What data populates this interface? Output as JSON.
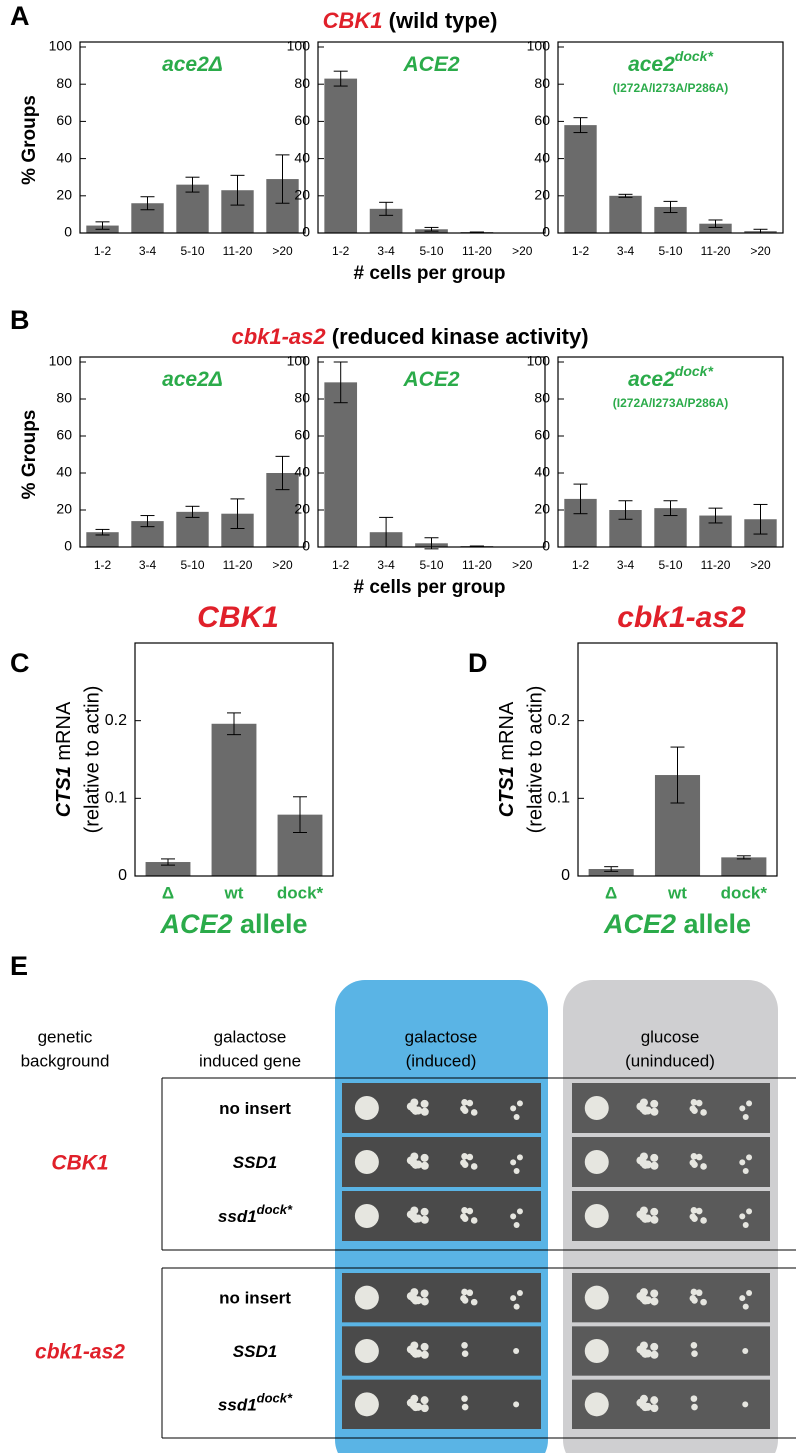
{
  "figure": {
    "labels": [
      "A",
      "B",
      "C",
      "D",
      "E"
    ],
    "a_title": [
      "CBK1",
      "(wild type)"
    ],
    "b_title": [
      "cbk1-as2",
      "(reduced kinase activity)"
    ]
  },
  "chart_data": [
    {
      "type": "bar",
      "title": "ace2Δ",
      "categories": [
        "1-2",
        "3-4",
        "5-10",
        "11-20",
        ">20"
      ],
      "values": [
        4,
        16,
        26,
        23,
        29
      ],
      "errors": [
        2,
        3.5,
        4,
        8,
        13
      ],
      "ylim": [
        0,
        100
      ],
      "yticks": [
        0,
        20,
        40,
        60,
        80,
        100
      ],
      "color": "#6b6b6b",
      "title_color": "#2bab4a",
      "ylabel": "% Groups"
    },
    {
      "type": "bar",
      "title": "ACE2",
      "categories": [
        "1-2",
        "3-4",
        "5-10",
        "11-20",
        ">20"
      ],
      "values": [
        83,
        13,
        2,
        0.5,
        0
      ],
      "errors": [
        4,
        3.5,
        1,
        0,
        0
      ],
      "ylim": [
        0,
        100
      ],
      "yticks": [
        0,
        20,
        40,
        60,
        80,
        100
      ],
      "color": "#6b6b6b",
      "title_color": "#2bab4a",
      "xlabel": "# cells per group"
    },
    {
      "type": "bar",
      "title": "ace2",
      "title_sup": "dock*",
      "subtitle": "(I272A/I273A/P286A)",
      "categories": [
        "1-2",
        "3-4",
        "5-10",
        "11-20",
        ">20"
      ],
      "values": [
        58,
        20,
        14,
        5,
        1
      ],
      "errors": [
        4,
        0.8,
        3,
        2,
        1
      ],
      "ylim": [
        0,
        100
      ],
      "yticks": [
        0,
        20,
        40,
        60,
        80,
        100
      ],
      "color": "#6b6b6b",
      "title_color": "#2bab4a"
    },
    {
      "type": "bar",
      "title": "ace2Δ",
      "categories": [
        "1-2",
        "3-4",
        "5-10",
        "11-20",
        ">20"
      ],
      "values": [
        8,
        14,
        19,
        18,
        40
      ],
      "errors": [
        1.5,
        3,
        3,
        8,
        9
      ],
      "ylim": [
        0,
        100
      ],
      "yticks": [
        0,
        20,
        40,
        60,
        80,
        100
      ],
      "color": "#6b6b6b",
      "title_color": "#2bab4a",
      "ylabel": "% Groups"
    },
    {
      "type": "bar",
      "title": "ACE2",
      "categories": [
        "1-2",
        "3-4",
        "5-10",
        "11-20",
        ">20"
      ],
      "values": [
        89,
        8,
        2,
        0.5,
        0
      ],
      "errors": [
        11,
        8,
        3,
        0,
        0
      ],
      "ylim": [
        0,
        100
      ],
      "yticks": [
        0,
        20,
        40,
        60,
        80,
        100
      ],
      "color": "#6b6b6b",
      "title_color": "#2bab4a",
      "xlabel": "# cells per group"
    },
    {
      "type": "bar",
      "title": "ace2",
      "title_sup": "dock*",
      "subtitle": "(I272A/I273A/P286A)",
      "categories": [
        "1-2",
        "3-4",
        "5-10",
        "11-20",
        ">20"
      ],
      "values": [
        26,
        20,
        21,
        17,
        15
      ],
      "errors": [
        8,
        5,
        4,
        4,
        8
      ],
      "ylim": [
        0,
        100
      ],
      "yticks": [
        0,
        20,
        40,
        60,
        80,
        100
      ],
      "color": "#6b6b6b",
      "title_color": "#2bab4a"
    },
    {
      "type": "bar",
      "title": "CBK1",
      "title_color": "#e0202a",
      "categories": [
        "Δ",
        "wt",
        "dock*"
      ],
      "values": [
        0.018,
        0.196,
        0.079
      ],
      "errors": [
        0.004,
        0.014,
        0.023
      ],
      "ylim": [
        0,
        0.3
      ],
      "yticks": [
        0,
        0.1,
        0.2
      ],
      "color": "#6b6b6b",
      "ylabel_italic": "CTS1",
      "ylabel_rest": " mRNA",
      "ylabel2": "(relative to actin)",
      "xlabel_italic": "ACE2",
      "xlabel_rest": " allele",
      "category_color": "#2bab4a"
    },
    {
      "type": "bar",
      "title": "cbk1-as2",
      "title_color": "#e0202a",
      "categories": [
        "Δ",
        "wt",
        "dock*"
      ],
      "values": [
        0.009,
        0.13,
        0.024
      ],
      "errors": [
        0.003,
        0.036,
        0.002
      ],
      "ylim": [
        0,
        0.3
      ],
      "yticks": [
        0,
        0.1,
        0.2
      ],
      "color": "#6b6b6b",
      "ylabel_italic": "CTS1",
      "ylabel_rest": " mRNA",
      "ylabel2": "(relative to actin)",
      "xlabel_italic": "ACE2",
      "xlabel_rest": " allele",
      "category_color": "#2bab4a"
    }
  ],
  "panel_e": {
    "headers": {
      "genetic_background": [
        "genetic",
        "background"
      ],
      "induced_gene": [
        "galactose",
        "induced gene"
      ],
      "galactose": [
        "galactose",
        "(induced)"
      ],
      "glucose": [
        "glucose",
        "(uninduced)"
      ]
    },
    "groups": [
      {
        "name": "CBK1",
        "rows": [
          {
            "gene": "no insert"
          },
          {
            "gene": "SSD1"
          },
          {
            "gene": "ssd1",
            "sup": "dock*"
          }
        ]
      },
      {
        "name": "cbk1-as2",
        "rows": [
          {
            "gene": "no insert"
          },
          {
            "gene": "SSD1"
          },
          {
            "gene": "ssd1",
            "sup": "dock*"
          }
        ]
      }
    ]
  }
}
